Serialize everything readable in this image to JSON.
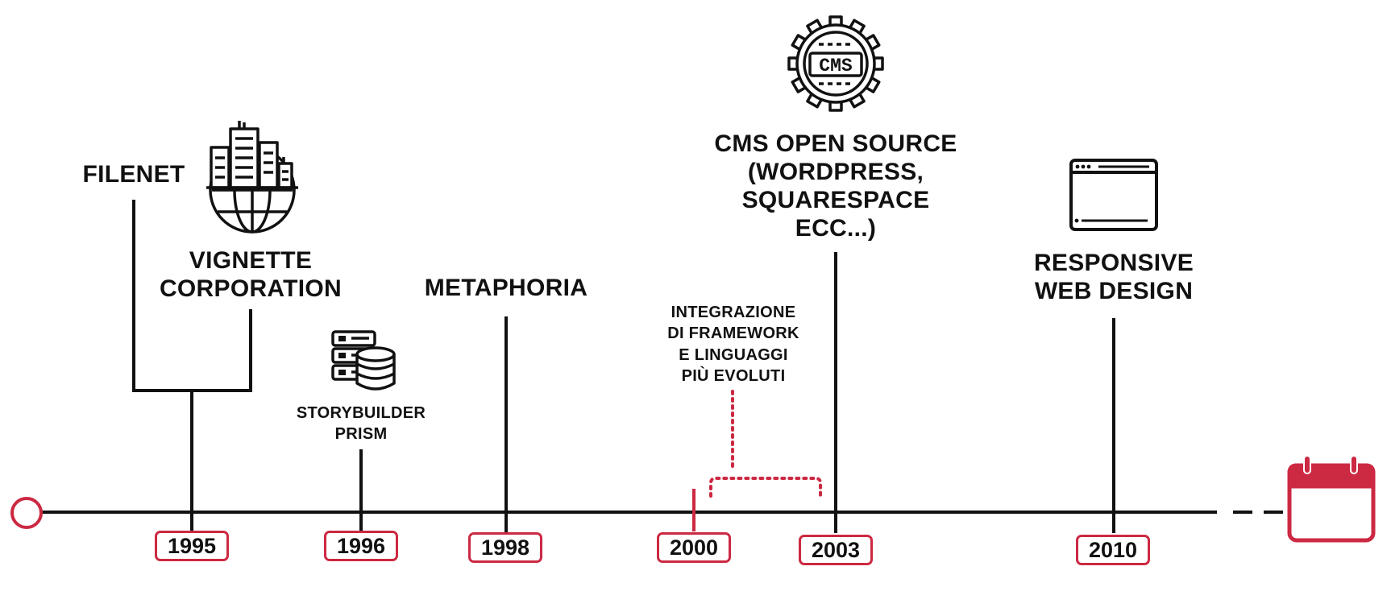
{
  "colors": {
    "accent": "#cc2942",
    "ink": "#111111",
    "background": "#ffffff"
  },
  "events": [
    {
      "year": "1995",
      "labels": [
        "FILENET",
        "VIGNETTE CORPORATION"
      ],
      "icon": "city-globe-icon"
    },
    {
      "year": "1996",
      "label": "STORYBUILDER PRISM",
      "icon": "server-database-icon"
    },
    {
      "year": "1998",
      "label": "METAPHORIA"
    },
    {
      "year": "2000",
      "label": "INTEGRAZIONE DI FRAMEWORK E LINGUAGGI PIÙ EVOLUTI",
      "span_to": "2003"
    },
    {
      "year": "2003",
      "label": "CMS OPEN SOURCE (WORDPRESS, SQUARESPACE ECC...)",
      "icon": "cms-gear-icon"
    },
    {
      "year": "2010",
      "label": "RESPONSIVE WEB DESIGN",
      "icon": "browser-window-icon"
    }
  ],
  "text": {
    "filenet": "FILENET",
    "vignette_1": "VIGNETTE",
    "vignette_2": "CORPORATION",
    "storybuilder_1": "STORYBUILDER",
    "storybuilder_2": "PRISM",
    "metaphoria": "METAPHORIA",
    "integrazione_1": "INTEGRAZIONE",
    "integrazione_2": "DI FRAMEWORK",
    "integrazione_3": "E LINGUAGGI",
    "integrazione_4": "PIÙ EVOLUTI",
    "cms_1": "CMS OPEN SOURCE",
    "cms_2": "(WORDPRESS,",
    "cms_3": "SQUARESPACE",
    "cms_4": "ECC...)",
    "cms_icon_text": "CMS",
    "rwd_1": "RESPONSIVE",
    "rwd_2": "WEB DESIGN"
  },
  "years": {
    "y1995": "1995",
    "y1996": "1996",
    "y1998": "1998",
    "y2000": "2000",
    "y2003": "2003",
    "y2010": "2010"
  },
  "icons": {
    "start": "start-circle-icon",
    "end": "calendar-icon",
    "y1995": "city-globe-icon",
    "y1996": "server-database-icon",
    "y2003": "cms-gear-icon",
    "y2010": "browser-window-icon"
  }
}
